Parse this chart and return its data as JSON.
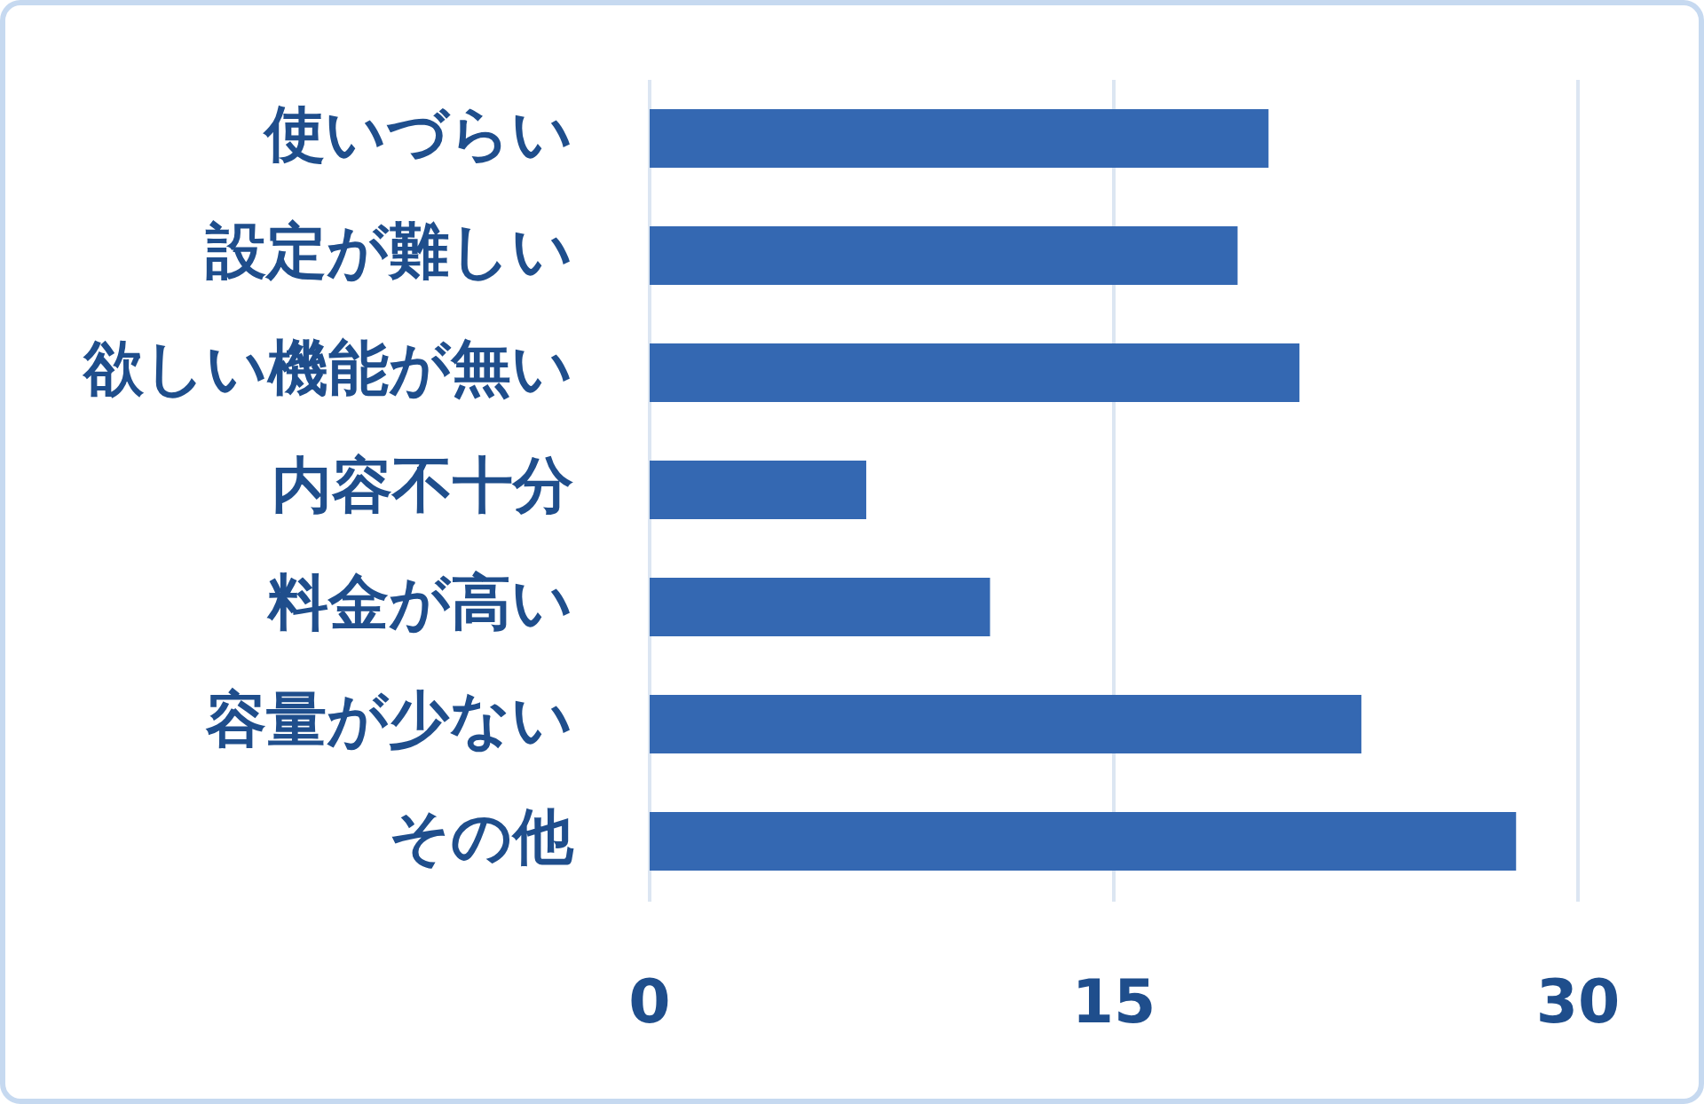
{
  "chart_data": {
    "type": "bar",
    "orientation": "horizontal",
    "categories": [
      "使いづらい",
      "設定が難しい",
      "欲しい機能が無い",
      "内容不十分",
      "料金が高い",
      "容量が少ない",
      "その他"
    ],
    "values": [
      20,
      19,
      21,
      7,
      11,
      23,
      28
    ],
    "color": "#3468b2",
    "xlim": [
      0,
      30
    ],
    "xticks": [
      0,
      15,
      30
    ],
    "grid": "x"
  }
}
